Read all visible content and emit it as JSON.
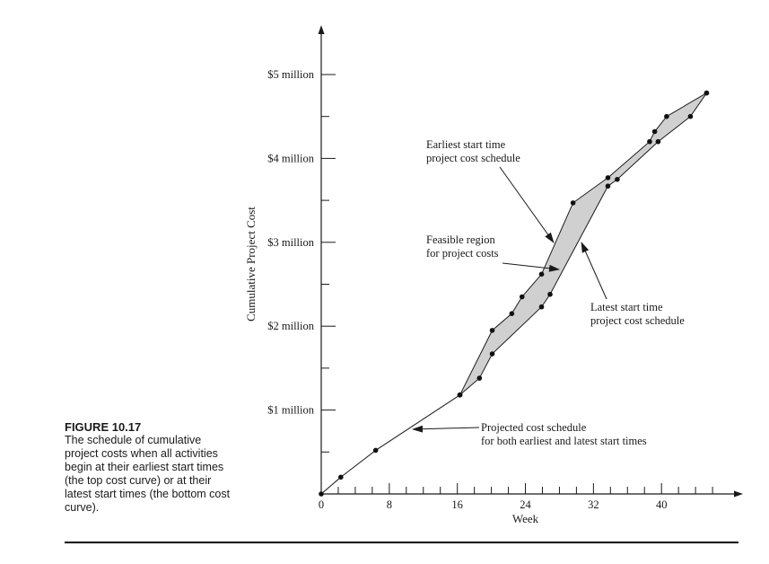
{
  "figure": {
    "label": "FIGURE 10.17",
    "caption": "The schedule of cumulative project costs when all activities begin at their earliest start times (the top cost curve) or at their latest start times (the bottom cost curve)."
  },
  "chart_data": {
    "type": "line",
    "xlabel": "Week",
    "ylabel": "Cumulative Project Cost",
    "x_ticks": [
      0,
      8,
      16,
      24,
      32,
      40
    ],
    "x_tick_labels": [
      "0",
      "8",
      "16",
      "24",
      "32",
      "40"
    ],
    "y_ticks": [
      1,
      2,
      3,
      4,
      5
    ],
    "y_tick_labels": [
      "$1 million",
      "$2 million",
      "$3 million",
      "$4 million",
      "$5 million"
    ],
    "xlim": [
      0,
      49
    ],
    "ylim": [
      0,
      5.5
    ],
    "grid": false,
    "series": [
      {
        "name": "Projected cost schedule for both earliest and latest start times",
        "x": [
          0,
          2.3,
          6.4,
          16.3
        ],
        "y": [
          0,
          0.2,
          0.52,
          1.18
        ]
      },
      {
        "name": "Earliest start time project cost schedule",
        "x": [
          16.3,
          20.1,
          22.4,
          23.6,
          25.9,
          29.6,
          33.7,
          38.6,
          39.2,
          40.6,
          45.3
        ],
        "y": [
          1.18,
          1.95,
          2.15,
          2.35,
          2.62,
          3.47,
          3.77,
          4.2,
          4.32,
          4.5,
          4.78
        ]
      },
      {
        "name": "Latest start time project cost schedule",
        "x": [
          16.3,
          18.6,
          20.1,
          25.9,
          26.9,
          33.7,
          34.8,
          39.6,
          43.4,
          45.3
        ],
        "y": [
          1.18,
          1.38,
          1.67,
          2.23,
          2.38,
          3.67,
          3.75,
          4.2,
          4.5,
          4.78
        ]
      }
    ],
    "annotations": [
      {
        "text": [
          "Earliest start time",
          "project cost schedule"
        ]
      },
      {
        "text": [
          "Feasible region",
          "for project costs"
        ]
      },
      {
        "text": [
          "Latest start time",
          "project cost schedule"
        ]
      },
      {
        "text": [
          "Projected cost schedule",
          "for both earliest and latest start times"
        ]
      }
    ],
    "colors": {
      "line": "#1a1a1a",
      "feasible_fill": "#d0d0d0",
      "marker": "#111111"
    }
  }
}
